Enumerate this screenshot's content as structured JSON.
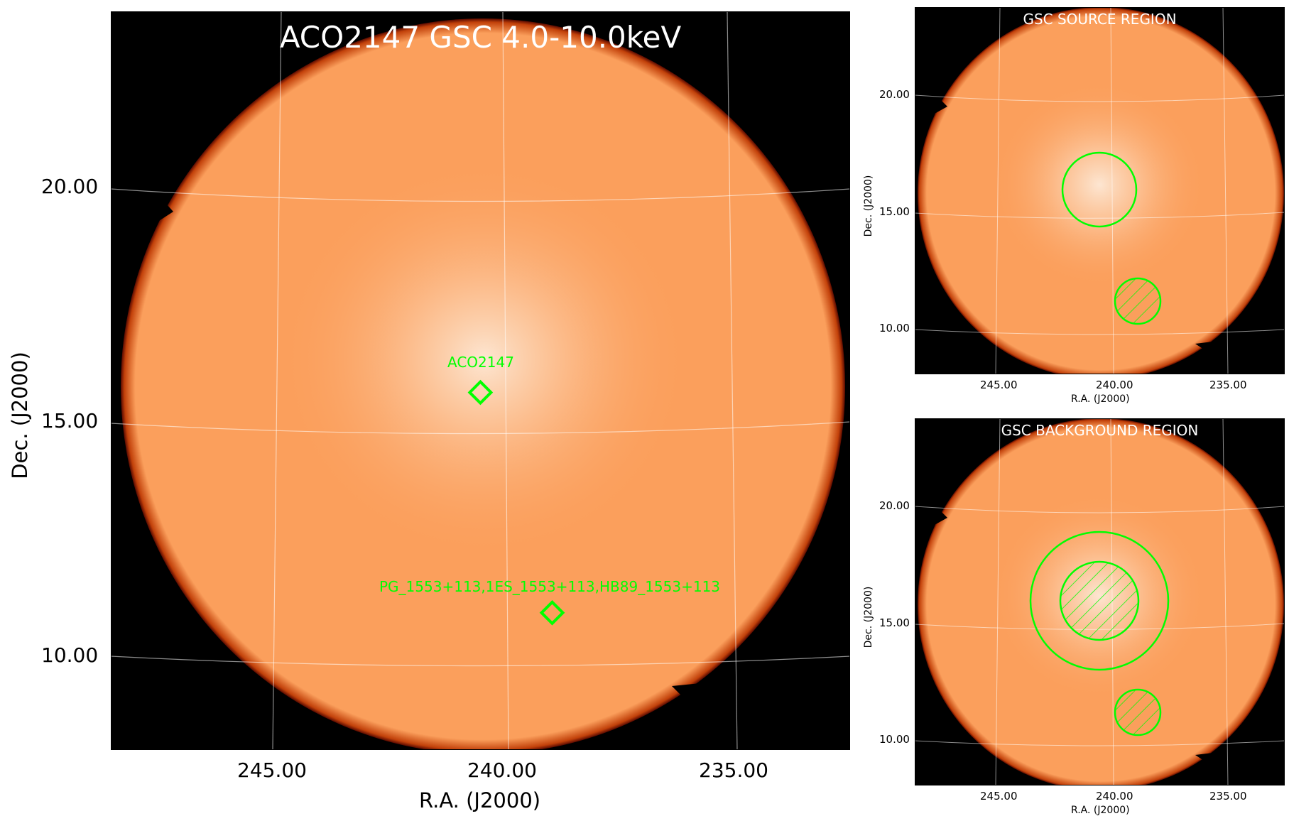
{
  "main": {
    "title": "ACO2147 GSC 4.0-10.0keV",
    "xlabel": "R.A. (J2000)",
    "ylabel": "Dec. (J2000)",
    "xticks": [
      "245.00",
      "240.00",
      "235.00"
    ],
    "yticks": [
      "20.00",
      "15.00",
      "10.00"
    ],
    "sources": [
      {
        "name": "ACO2147",
        "ra": 240.5,
        "dec": 15.9
      },
      {
        "name": "PG_1553+113,1ES_1553+113,HB89_1553+113",
        "ra": 238.9,
        "dec": 11.2
      }
    ]
  },
  "source_panel": {
    "title": "GSC SOURCE REGION",
    "xlabel": "R.A. (J2000)",
    "ylabel": "Dec. (J2000)",
    "xticks": [
      "245.00",
      "240.00",
      "235.00"
    ],
    "yticks": [
      "20.00",
      "15.00",
      "10.00"
    ]
  },
  "background_panel": {
    "title": "GSC BACKGROUND REGION",
    "xlabel": "R.A. (J2000)",
    "ylabel": "Dec. (J2000)",
    "xticks": [
      "245.00",
      "240.00",
      "235.00"
    ],
    "yticks": [
      "20.00",
      "15.00",
      "10.00"
    ]
  },
  "colors": {
    "background": "#000000",
    "field": "#fb9f5c",
    "field_center": "#fde3cc",
    "edge": "#8a1a00",
    "region": "#00ff00",
    "grid": "#ffffff"
  }
}
